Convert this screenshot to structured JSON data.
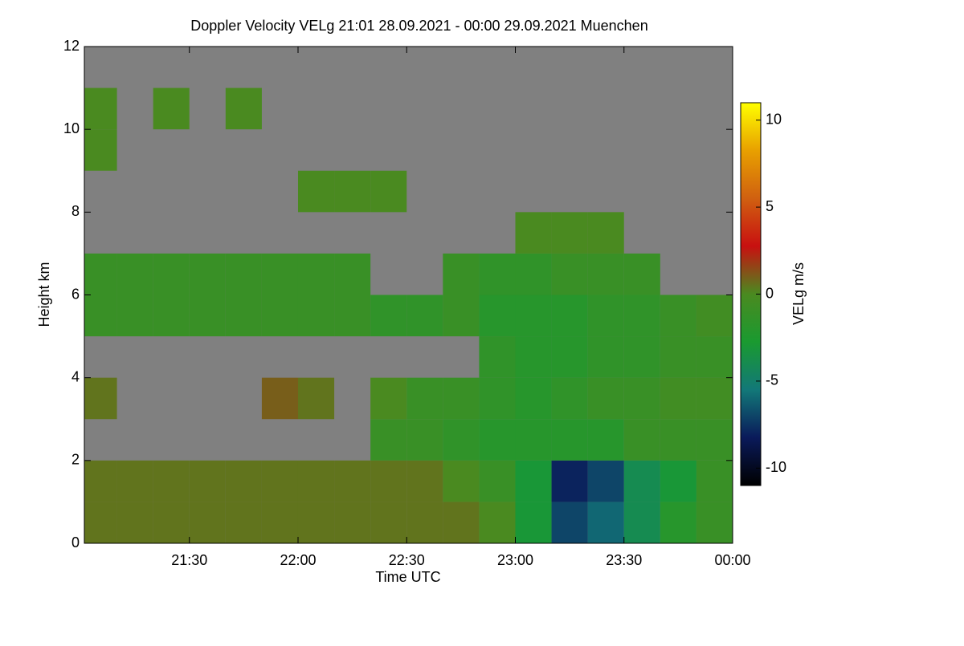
{
  "chart_data": {
    "type": "heatmap",
    "title": "Doppler Velocity VELg   21:01 28.09.2021 - 00:00 29.09.2021 Muenchen",
    "xlabel": "Time UTC",
    "ylabel": "Height km",
    "xlim": [
      1261,
      1440
    ],
    "xticks": [
      {
        "value": 1290,
        "label": "21:30"
      },
      {
        "value": 1320,
        "label": "22:00"
      },
      {
        "value": 1350,
        "label": "22:30"
      },
      {
        "value": 1380,
        "label": "23:00"
      },
      {
        "value": 1410,
        "label": "23:30"
      },
      {
        "value": 1440,
        "label": "00:00"
      }
    ],
    "ylim": [
      0,
      12
    ],
    "yticks": [
      0,
      2,
      4,
      6,
      8,
      10,
      12
    ],
    "no_data_color": "#808080",
    "x_edges": [
      1261,
      1270,
      1280,
      1290,
      1300,
      1310,
      1320,
      1330,
      1340,
      1350,
      1360,
      1370,
      1380,
      1390,
      1400,
      1410,
      1420,
      1430,
      1440
    ],
    "y_edges": [
      0,
      1,
      2,
      3,
      4,
      5,
      6,
      7,
      8,
      9,
      10,
      11,
      12
    ],
    "z": [
      [
        0.5,
        0.5,
        0.5,
        0.5,
        0.5,
        0.5,
        0.5,
        0.5,
        0.5,
        0.5,
        0.5,
        0,
        -3,
        -7,
        -6,
        -4,
        -2,
        -1
      ],
      [
        0.5,
        0.5,
        0.5,
        0.5,
        0.5,
        0.5,
        0.5,
        0.5,
        0.5,
        0.5,
        0,
        -1,
        -3,
        -8,
        -7,
        -4,
        -3,
        -1
      ],
      [
        null,
        null,
        null,
        null,
        null,
        null,
        null,
        null,
        -1,
        -1,
        -1.5,
        -2,
        -2,
        -2,
        -2,
        -1,
        -1,
        -1
      ],
      [
        0.5,
        null,
        null,
        null,
        null,
        1,
        0.5,
        null,
        0,
        -1,
        -1,
        -1.5,
        -2,
        -1.5,
        -1,
        -1,
        -0.5,
        -0.5
      ],
      [
        null,
        null,
        null,
        null,
        null,
        null,
        null,
        null,
        null,
        null,
        null,
        -1.5,
        -2,
        -2,
        -1.5,
        -1.5,
        -1,
        -1
      ],
      [
        -1,
        -1,
        -1,
        -1,
        -1,
        -1,
        -1,
        -1,
        -1.5,
        -1.5,
        -1,
        -2,
        -2,
        -2,
        -1.5,
        -1.5,
        -1,
        -0.5
      ],
      [
        -1,
        -1,
        -1,
        -1,
        -1,
        -1,
        -1,
        -1,
        null,
        null,
        -1,
        -1.5,
        -1.5,
        -1,
        -1,
        -1,
        null,
        null
      ],
      [
        null,
        null,
        null,
        null,
        null,
        null,
        null,
        null,
        null,
        null,
        null,
        null,
        0,
        0,
        0,
        null,
        null,
        null
      ],
      [
        null,
        null,
        null,
        null,
        null,
        null,
        0,
        0,
        0,
        null,
        null,
        null,
        null,
        null,
        null,
        null,
        null,
        null
      ],
      [
        0,
        null,
        null,
        null,
        null,
        null,
        null,
        null,
        null,
        null,
        null,
        null,
        null,
        null,
        null,
        null,
        null,
        null
      ],
      [
        0,
        null,
        0,
        null,
        0,
        null,
        null,
        null,
        null,
        null,
        null,
        null,
        null,
        null,
        null,
        null,
        null,
        null
      ],
      [
        null,
        null,
        null,
        null,
        null,
        null,
        null,
        null,
        null,
        null,
        null,
        null,
        null,
        null,
        null,
        null,
        null,
        null
      ]
    ],
    "colorbar": {
      "label": "VELg m/s",
      "lim": [
        -11,
        11
      ],
      "ticks": [
        -10,
        -5,
        0,
        5,
        10
      ],
      "colors": [
        "#000000",
        "#0a1a5a",
        "#127878",
        "#1a9a30",
        "#4a8a20",
        "#c81010",
        "#d06010",
        "#e8a000",
        "#ffff00"
      ]
    }
  }
}
